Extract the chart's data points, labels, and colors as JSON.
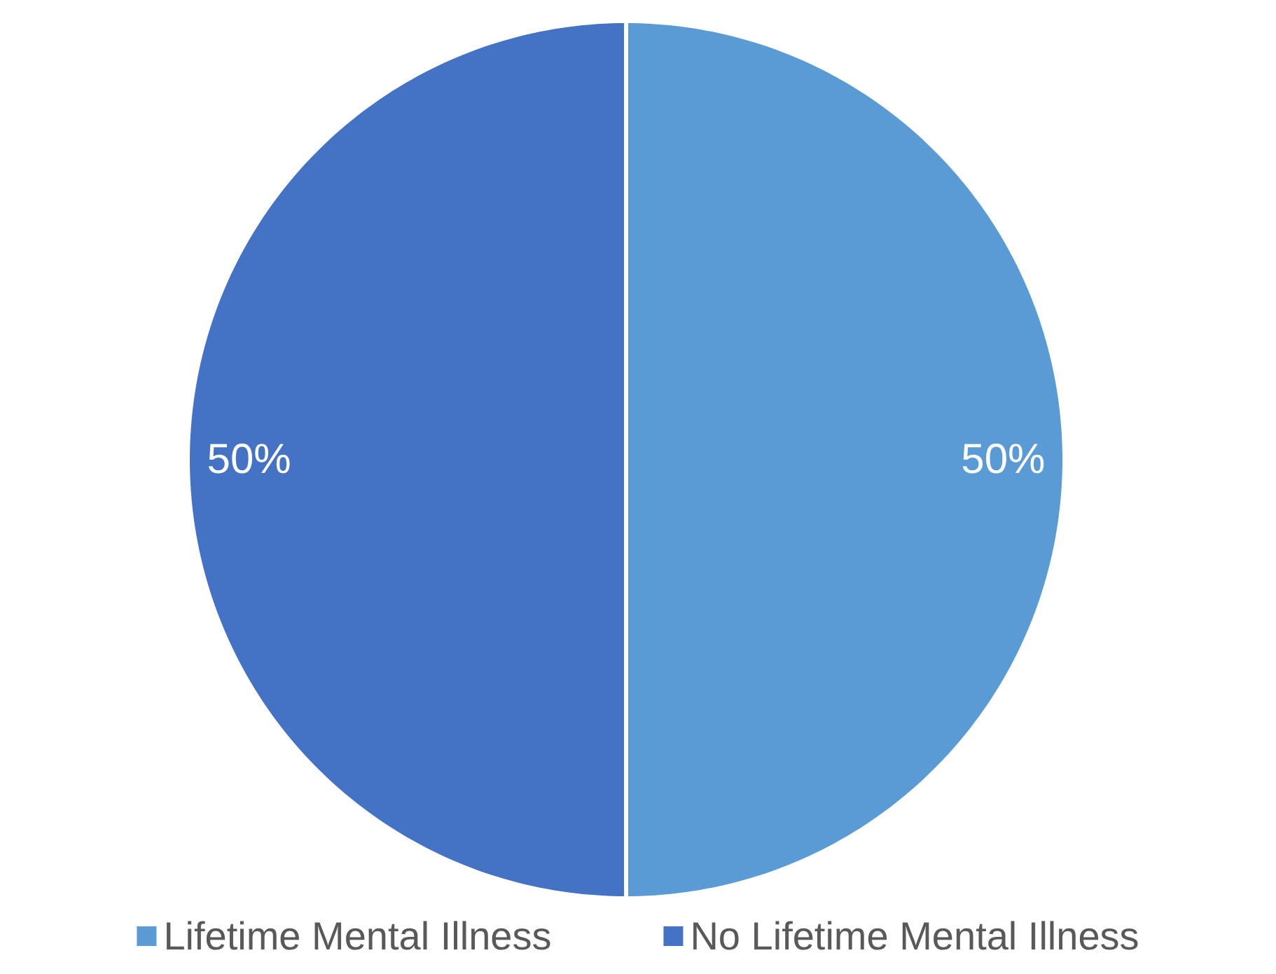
{
  "chart_data": {
    "type": "pie",
    "categories": [
      "Lifetime Mental Illness",
      "No Lifetime Mental Illness"
    ],
    "values": [
      50,
      50
    ],
    "colors": [
      "#5b9bd5",
      "#4472c4"
    ],
    "value_labels": [
      "50%",
      "50%"
    ],
    "legend": "bottom"
  }
}
